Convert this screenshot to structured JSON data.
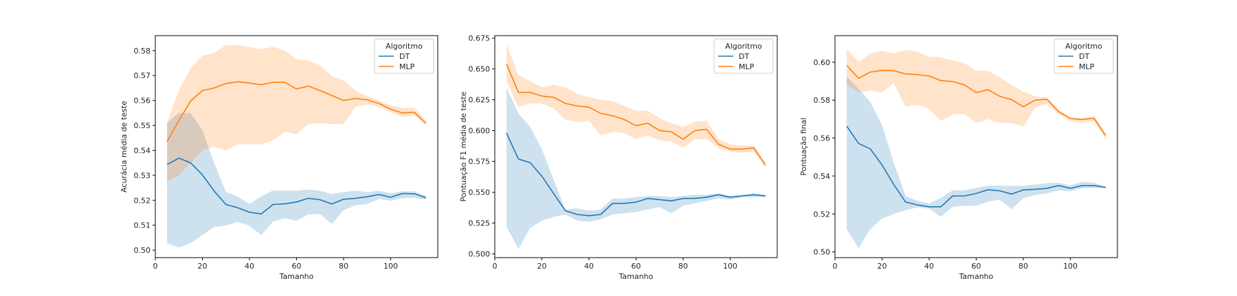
{
  "colors": {
    "dt": "#1f77b4",
    "mlp": "#ff7f0e"
  },
  "chart_data": [
    {
      "type": "line",
      "xlabel": "Tamanho",
      "ylabel": "Acurácia média de teste",
      "xlim": [
        0,
        120
      ],
      "ylim": [
        0.497,
        0.586
      ],
      "xticks": [
        0,
        20,
        40,
        60,
        80,
        100
      ],
      "yticks": [
        0.5,
        0.51,
        0.52,
        0.53,
        0.54,
        0.55,
        0.56,
        0.57,
        0.58
      ],
      "ytick_labels": [
        "0.50",
        "0.51",
        "0.52",
        "0.53",
        "0.54",
        "0.55",
        "0.56",
        "0.57",
        "0.58"
      ],
      "legend": {
        "title": "Algoritmo",
        "position": "top-right",
        "entries": [
          "DT",
          "MLP"
        ]
      },
      "x": [
        5,
        10,
        15,
        20,
        25,
        30,
        35,
        40,
        45,
        50,
        55,
        60,
        65,
        70,
        75,
        80,
        85,
        90,
        95,
        100,
        105,
        110,
        115
      ],
      "series": [
        {
          "name": "DT",
          "color_key": "dt",
          "values": [
            0.5343,
            0.5369,
            0.535,
            0.5302,
            0.5237,
            0.5183,
            0.517,
            0.5152,
            0.5145,
            0.5183,
            0.5186,
            0.5193,
            0.5208,
            0.5202,
            0.5185,
            0.5204,
            0.5208,
            0.5214,
            0.5223,
            0.5212,
            0.5227,
            0.5226,
            0.521
          ],
          "upper": [
            0.551,
            0.555,
            0.555,
            0.548,
            0.535,
            0.5233,
            0.5215,
            0.5185,
            0.5215,
            0.524,
            0.5238,
            0.5238,
            0.5243,
            0.5238,
            0.5225,
            0.5233,
            0.5238,
            0.5233,
            0.5238,
            0.5228,
            0.5236,
            0.5236,
            0.5218
          ],
          "lower": [
            0.5028,
            0.501,
            0.5028,
            0.506,
            0.5093,
            0.5098,
            0.5113,
            0.5098,
            0.506,
            0.5115,
            0.5128,
            0.5118,
            0.5143,
            0.5145,
            0.5105,
            0.516,
            0.518,
            0.5185,
            0.5205,
            0.5198,
            0.5208,
            0.521,
            0.5203
          ]
        },
        {
          "name": "MLP",
          "color_key": "mlp",
          "values": [
            0.5435,
            0.552,
            0.5598,
            0.564,
            0.565,
            0.5668,
            0.5675,
            0.567,
            0.5663,
            0.5673,
            0.5673,
            0.5646,
            0.5658,
            0.564,
            0.562,
            0.56,
            0.5608,
            0.5603,
            0.5588,
            0.5565,
            0.555,
            0.5553,
            0.5508
          ],
          "upper": [
            0.551,
            0.564,
            0.573,
            0.578,
            0.579,
            0.5822,
            0.5822,
            0.5815,
            0.5805,
            0.5815,
            0.58,
            0.5765,
            0.576,
            0.574,
            0.5698,
            0.568,
            0.564,
            0.5618,
            0.56,
            0.558,
            0.557,
            0.557,
            0.5518
          ],
          "lower": [
            0.5273,
            0.53,
            0.535,
            0.54,
            0.5415,
            0.54,
            0.5423,
            0.5425,
            0.5423,
            0.544,
            0.5475,
            0.5465,
            0.5505,
            0.551,
            0.5505,
            0.5505,
            0.5575,
            0.5583,
            0.5575,
            0.5553,
            0.5535,
            0.554,
            0.55
          ]
        }
      ]
    },
    {
      "type": "line",
      "xlabel": "Tamanho",
      "ylabel": "Pontuação F1 média de teste",
      "xlim": [
        0,
        120
      ],
      "ylim": [
        0.497,
        0.677
      ],
      "xticks": [
        0,
        20,
        40,
        60,
        80,
        100
      ],
      "yticks": [
        0.5,
        0.525,
        0.55,
        0.575,
        0.6,
        0.625,
        0.65,
        0.675
      ],
      "ytick_labels": [
        "0.500",
        "0.525",
        "0.550",
        "0.575",
        "0.600",
        "0.625",
        "0.650",
        "0.675"
      ],
      "legend": {
        "title": "Algoritmo",
        "position": "top-right",
        "entries": [
          "DT",
          "MLP"
        ]
      },
      "x": [
        5,
        10,
        15,
        20,
        25,
        30,
        35,
        40,
        45,
        50,
        55,
        60,
        65,
        70,
        75,
        80,
        85,
        90,
        95,
        100,
        105,
        110,
        115
      ],
      "series": [
        {
          "name": "DT",
          "color_key": "dt",
          "values": [
            0.598,
            0.577,
            0.574,
            0.563,
            0.549,
            0.535,
            0.532,
            0.531,
            0.532,
            0.541,
            0.541,
            0.542,
            0.545,
            0.544,
            0.543,
            0.545,
            0.545,
            0.546,
            0.548,
            0.546,
            0.547,
            0.548,
            0.547
          ],
          "upper": [
            0.635,
            0.614,
            0.603,
            0.585,
            0.56,
            0.536,
            0.537,
            0.535,
            0.536,
            0.545,
            0.545,
            0.546,
            0.547,
            0.547,
            0.546,
            0.547,
            0.548,
            0.548,
            0.549,
            0.547,
            0.548,
            0.549,
            0.548
          ],
          "lower": [
            0.522,
            0.504,
            0.521,
            0.527,
            0.53,
            0.532,
            0.527,
            0.526,
            0.528,
            0.532,
            0.533,
            0.534,
            0.536,
            0.538,
            0.533,
            0.539,
            0.541,
            0.543,
            0.545,
            0.544,
            0.546,
            0.546,
            0.546
          ]
        },
        {
          "name": "MLP",
          "color_key": "mlp",
          "values": [
            0.654,
            0.631,
            0.631,
            0.628,
            0.627,
            0.622,
            0.62,
            0.619,
            0.614,
            0.612,
            0.609,
            0.604,
            0.606,
            0.6,
            0.599,
            0.593,
            0.6,
            0.601,
            0.589,
            0.585,
            0.585,
            0.586,
            0.572
          ],
          "upper": [
            0.67,
            0.645,
            0.64,
            0.635,
            0.637,
            0.635,
            0.63,
            0.627,
            0.625,
            0.624,
            0.62,
            0.616,
            0.616,
            0.61,
            0.606,
            0.603,
            0.607,
            0.608,
            0.593,
            0.589,
            0.588,
            0.588,
            0.574
          ],
          "lower": [
            0.64,
            0.619,
            0.622,
            0.622,
            0.618,
            0.609,
            0.607,
            0.608,
            0.596,
            0.599,
            0.598,
            0.593,
            0.596,
            0.592,
            0.591,
            0.586,
            0.593,
            0.593,
            0.586,
            0.583,
            0.582,
            0.583,
            0.57
          ]
        }
      ]
    },
    {
      "type": "line",
      "xlabel": "Tamanho",
      "ylabel": "Pontuação final",
      "xlim": [
        0,
        120
      ],
      "ylim": [
        0.497,
        0.614
      ],
      "xticks": [
        0,
        20,
        40,
        60,
        80,
        100
      ],
      "yticks": [
        0.5,
        0.52,
        0.54,
        0.56,
        0.58,
        0.6
      ],
      "ytick_labels": [
        "0.50",
        "0.52",
        "0.54",
        "0.56",
        "0.58",
        "0.60"
      ],
      "legend": {
        "title": "Algoritmo",
        "position": "top-right",
        "entries": [
          "DT",
          "MLP"
        ]
      },
      "x": [
        5,
        10,
        15,
        20,
        25,
        30,
        35,
        40,
        45,
        50,
        55,
        60,
        65,
        70,
        75,
        80,
        85,
        90,
        95,
        100,
        105,
        110,
        115
      ],
      "series": [
        {
          "name": "DT",
          "color_key": "dt",
          "values": [
            0.5663,
            0.5572,
            0.5543,
            0.5458,
            0.5355,
            0.5263,
            0.5248,
            0.5238,
            0.5238,
            0.5295,
            0.5295,
            0.5308,
            0.5328,
            0.5322,
            0.5305,
            0.5327,
            0.533,
            0.5335,
            0.535,
            0.5335,
            0.535,
            0.535,
            0.534
          ],
          "upper": [
            0.5925,
            0.586,
            0.579,
            0.567,
            0.547,
            0.5295,
            0.527,
            0.5255,
            0.5285,
            0.5325,
            0.5325,
            0.5338,
            0.5348,
            0.535,
            0.5348,
            0.5348,
            0.5355,
            0.5363,
            0.5365,
            0.535,
            0.537,
            0.5365,
            0.5345
          ],
          "lower": [
            0.512,
            0.502,
            0.512,
            0.5175,
            0.52,
            0.522,
            0.5235,
            0.5228,
            0.5185,
            0.5238,
            0.5243,
            0.5243,
            0.5265,
            0.5275,
            0.5225,
            0.5283,
            0.53,
            0.5308,
            0.5325,
            0.532,
            0.5335,
            0.5338,
            0.5335
          ]
        },
        {
          "name": "MLP",
          "color_key": "mlp",
          "values": [
            0.5983,
            0.5915,
            0.5948,
            0.5957,
            0.5955,
            0.5938,
            0.5935,
            0.5927,
            0.5903,
            0.5898,
            0.588,
            0.584,
            0.5855,
            0.582,
            0.5803,
            0.5765,
            0.58,
            0.5805,
            0.574,
            0.5703,
            0.5698,
            0.5705,
            0.5613
          ],
          "upper": [
            0.607,
            0.6,
            0.6045,
            0.606,
            0.6045,
            0.6065,
            0.6055,
            0.603,
            0.6025,
            0.601,
            0.5995,
            0.5955,
            0.5955,
            0.592,
            0.588,
            0.5845,
            0.582,
            0.5815,
            0.575,
            0.571,
            0.5705,
            0.5718,
            0.5625
          ],
          "lower": [
            0.588,
            0.584,
            0.585,
            0.584,
            0.589,
            0.5765,
            0.5775,
            0.5755,
            0.569,
            0.5725,
            0.5725,
            0.568,
            0.57,
            0.568,
            0.568,
            0.566,
            0.576,
            0.578,
            0.5725,
            0.569,
            0.568,
            0.569,
            0.5595
          ]
        }
      ]
    }
  ]
}
